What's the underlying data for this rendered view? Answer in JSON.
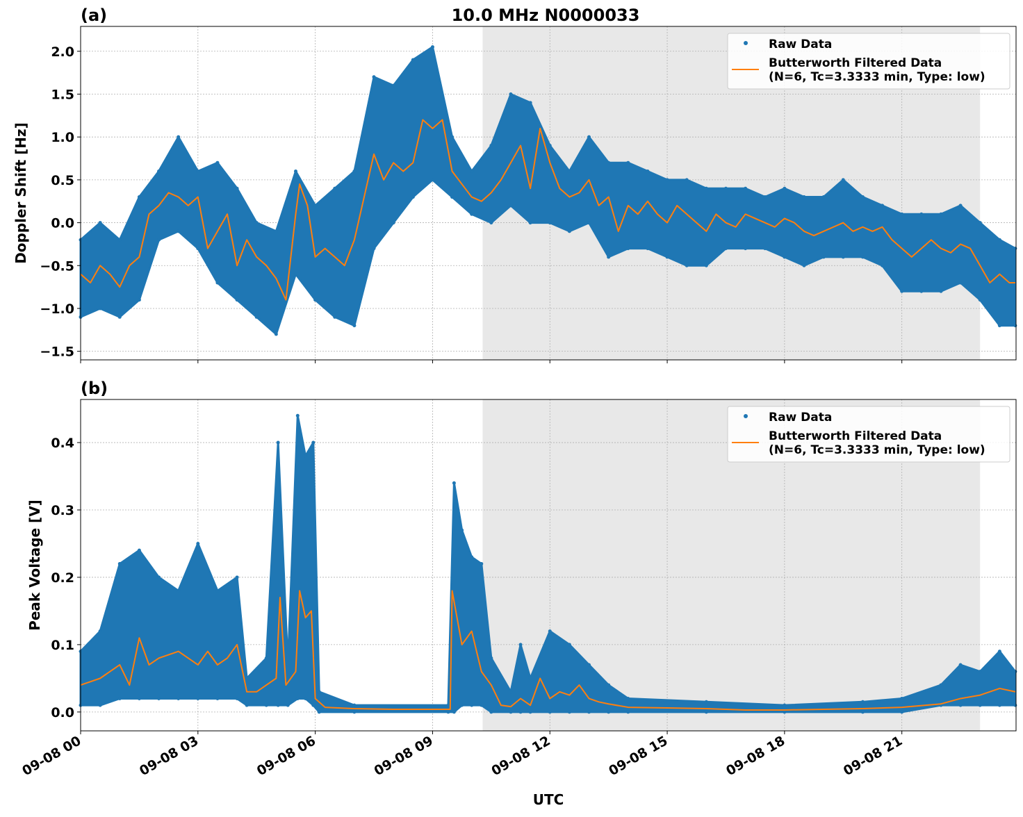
{
  "title": "10.0 MHz N0000033",
  "xlabel": "UTC",
  "xticks": [
    "09-08 00",
    "09-08 03",
    "09-08 06",
    "09-08 09",
    "09-08 12",
    "09-08 15",
    "09-08 18",
    "09-08 21"
  ],
  "xtick_hours": [
    0,
    3,
    6,
    9,
    12,
    15,
    18,
    21
  ],
  "xlim_hours": [
    0,
    23.92
  ],
  "shaded_region_hours": [
    10.28,
    23.0
  ],
  "colors": {
    "raw": "#1f77b4",
    "filtered": "#ff7f0e",
    "shade": "#e8e8e8",
    "grid": "#b0b0b0"
  },
  "legend": {
    "raw": "Raw Data",
    "filtered_line1": "Butterworth Filtered Data",
    "filtered_line2": "(N=6, Tc=3.3333 min, Type: low)",
    "placement": "top-right"
  },
  "chart_data": [
    {
      "type": "scatter+line",
      "panel_label": "(a)",
      "ylabel": "Doppler Shift [Hz]",
      "ylim": [
        -1.6,
        2.29
      ],
      "yticks": [
        2.0,
        1.5,
        1.0,
        0.5,
        0.0,
        -0.5,
        -1.0,
        -1.5
      ],
      "ytick_labels": [
        "2.0",
        "1.5",
        "1.0",
        "0.5",
        "0.0",
        "−0.5",
        "−1.0",
        "−1.5"
      ],
      "grid": true,
      "raw_envelope_hour_low_high": [
        [
          0,
          -1.1,
          -0.2
        ],
        [
          0.5,
          -1.0,
          0.0
        ],
        [
          1,
          -1.1,
          -0.2
        ],
        [
          1.5,
          -0.9,
          0.3
        ],
        [
          2,
          -0.2,
          0.6
        ],
        [
          2.5,
          -0.1,
          1.0
        ],
        [
          3,
          -0.3,
          0.6
        ],
        [
          3.5,
          -0.7,
          0.7
        ],
        [
          4,
          -0.9,
          0.4
        ],
        [
          4.5,
          -1.1,
          0.0
        ],
        [
          5,
          -1.3,
          -0.1
        ],
        [
          5.5,
          -0.6,
          0.6
        ],
        [
          6,
          -0.9,
          0.2
        ],
        [
          6.5,
          -1.1,
          0.4
        ],
        [
          7,
          -1.2,
          0.6
        ],
        [
          7.5,
          -0.3,
          1.7
        ],
        [
          8,
          0.0,
          1.6
        ],
        [
          8.5,
          0.3,
          1.9
        ],
        [
          9,
          0.5,
          2.05
        ],
        [
          9.5,
          0.3,
          1.0
        ],
        [
          10,
          0.1,
          0.6
        ],
        [
          10.5,
          0.0,
          0.9
        ],
        [
          11,
          0.2,
          1.5
        ],
        [
          11.5,
          0.0,
          1.4
        ],
        [
          12,
          0.0,
          0.9
        ],
        [
          12.5,
          -0.1,
          0.6
        ],
        [
          13,
          0.0,
          1.0
        ],
        [
          13.5,
          -0.4,
          0.7
        ],
        [
          14,
          -0.3,
          0.7
        ],
        [
          14.5,
          -0.3,
          0.6
        ],
        [
          15,
          -0.4,
          0.5
        ],
        [
          15.5,
          -0.5,
          0.5
        ],
        [
          16,
          -0.5,
          0.4
        ],
        [
          16.5,
          -0.3,
          0.4
        ],
        [
          17,
          -0.3,
          0.4
        ],
        [
          17.5,
          -0.3,
          0.3
        ],
        [
          18,
          -0.4,
          0.4
        ],
        [
          18.5,
          -0.5,
          0.3
        ],
        [
          19,
          -0.4,
          0.3
        ],
        [
          19.5,
          -0.4,
          0.5
        ],
        [
          20,
          -0.4,
          0.3
        ],
        [
          20.5,
          -0.5,
          0.2
        ],
        [
          21,
          -0.8,
          0.1
        ],
        [
          21.5,
          -0.8,
          0.1
        ],
        [
          22,
          -0.8,
          0.1
        ],
        [
          22.5,
          -0.7,
          0.2
        ],
        [
          23,
          -0.9,
          0.0
        ],
        [
          23.5,
          -1.2,
          -0.2
        ],
        [
          23.9,
          -1.2,
          -0.3
        ]
      ],
      "filtered_hour_value": [
        [
          0,
          -0.6
        ],
        [
          0.25,
          -0.7
        ],
        [
          0.5,
          -0.5
        ],
        [
          0.75,
          -0.6
        ],
        [
          1.0,
          -0.75
        ],
        [
          1.25,
          -0.5
        ],
        [
          1.5,
          -0.4
        ],
        [
          1.75,
          0.1
        ],
        [
          2.0,
          0.2
        ],
        [
          2.25,
          0.35
        ],
        [
          2.5,
          0.3
        ],
        [
          2.75,
          0.2
        ],
        [
          3.0,
          0.3
        ],
        [
          3.25,
          -0.3
        ],
        [
          3.5,
          -0.1
        ],
        [
          3.75,
          0.1
        ],
        [
          4.0,
          -0.5
        ],
        [
          4.25,
          -0.2
        ],
        [
          4.5,
          -0.4
        ],
        [
          4.75,
          -0.5
        ],
        [
          5.0,
          -0.65
        ],
        [
          5.25,
          -0.9
        ],
        [
          5.5,
          0.1
        ],
        [
          5.6,
          0.45
        ],
        [
          5.8,
          0.2
        ],
        [
          6.0,
          -0.4
        ],
        [
          6.25,
          -0.3
        ],
        [
          6.5,
          -0.4
        ],
        [
          6.75,
          -0.5
        ],
        [
          7.0,
          -0.2
        ],
        [
          7.25,
          0.3
        ],
        [
          7.5,
          0.8
        ],
        [
          7.75,
          0.5
        ],
        [
          8.0,
          0.7
        ],
        [
          8.25,
          0.6
        ],
        [
          8.5,
          0.7
        ],
        [
          8.75,
          1.2
        ],
        [
          9.0,
          1.1
        ],
        [
          9.25,
          1.2
        ],
        [
          9.5,
          0.6
        ],
        [
          9.75,
          0.45
        ],
        [
          10.0,
          0.3
        ],
        [
          10.25,
          0.25
        ],
        [
          10.5,
          0.35
        ],
        [
          10.75,
          0.5
        ],
        [
          11.0,
          0.7
        ],
        [
          11.25,
          0.9
        ],
        [
          11.5,
          0.4
        ],
        [
          11.75,
          1.1
        ],
        [
          12.0,
          0.7
        ],
        [
          12.25,
          0.4
        ],
        [
          12.5,
          0.3
        ],
        [
          12.75,
          0.35
        ],
        [
          13.0,
          0.5
        ],
        [
          13.25,
          0.2
        ],
        [
          13.5,
          0.3
        ],
        [
          13.75,
          -0.1
        ],
        [
          14.0,
          0.2
        ],
        [
          14.25,
          0.1
        ],
        [
          14.5,
          0.25
        ],
        [
          14.75,
          0.1
        ],
        [
          15.0,
          0.0
        ],
        [
          15.25,
          0.2
        ],
        [
          15.5,
          0.1
        ],
        [
          15.75,
          0.0
        ],
        [
          16.0,
          -0.1
        ],
        [
          16.25,
          0.1
        ],
        [
          16.5,
          0.0
        ],
        [
          16.75,
          -0.05
        ],
        [
          17.0,
          0.1
        ],
        [
          17.25,
          0.05
        ],
        [
          17.5,
          0.0
        ],
        [
          17.75,
          -0.05
        ],
        [
          18.0,
          0.05
        ],
        [
          18.25,
          0.0
        ],
        [
          18.5,
          -0.1
        ],
        [
          18.75,
          -0.15
        ],
        [
          19.0,
          -0.1
        ],
        [
          19.25,
          -0.05
        ],
        [
          19.5,
          0.0
        ],
        [
          19.75,
          -0.1
        ],
        [
          20.0,
          -0.05
        ],
        [
          20.25,
          -0.1
        ],
        [
          20.5,
          -0.05
        ],
        [
          20.75,
          -0.2
        ],
        [
          21.0,
          -0.3
        ],
        [
          21.25,
          -0.4
        ],
        [
          21.5,
          -0.3
        ],
        [
          21.75,
          -0.2
        ],
        [
          22.0,
          -0.3
        ],
        [
          22.25,
          -0.35
        ],
        [
          22.5,
          -0.25
        ],
        [
          22.75,
          -0.3
        ],
        [
          23.0,
          -0.5
        ],
        [
          23.25,
          -0.7
        ],
        [
          23.5,
          -0.6
        ],
        [
          23.75,
          -0.7
        ],
        [
          23.9,
          -0.7
        ]
      ]
    },
    {
      "type": "scatter+line",
      "panel_label": "(b)",
      "ylabel": "Peak Voltage [V]",
      "ylim": [
        -0.028,
        0.464
      ],
      "yticks": [
        0.4,
        0.3,
        0.2,
        0.1,
        0.0
      ],
      "ytick_labels": [
        "0.4",
        "0.3",
        "0.2",
        "0.1",
        "0.0"
      ],
      "grid": true,
      "raw_envelope_hour_low_high": [
        [
          0,
          0.01,
          0.09
        ],
        [
          0.5,
          0.01,
          0.12
        ],
        [
          1,
          0.02,
          0.22
        ],
        [
          1.5,
          0.02,
          0.24
        ],
        [
          2,
          0.02,
          0.2
        ],
        [
          2.5,
          0.02,
          0.18
        ],
        [
          3,
          0.02,
          0.25
        ],
        [
          3.5,
          0.02,
          0.18
        ],
        [
          4,
          0.02,
          0.2
        ],
        [
          4.25,
          0.01,
          0.05
        ],
        [
          4.75,
          0.01,
          0.08
        ],
        [
          5.05,
          0.01,
          0.4
        ],
        [
          5.3,
          0.01,
          0.07
        ],
        [
          5.55,
          0.02,
          0.44
        ],
        [
          5.75,
          0.02,
          0.38
        ],
        [
          5.95,
          0.01,
          0.4
        ],
        [
          6.1,
          0.0,
          0.03
        ],
        [
          7,
          0.0,
          0.01
        ],
        [
          9.4,
          0.0,
          0.01
        ],
        [
          9.55,
          0.0,
          0.34
        ],
        [
          9.75,
          0.01,
          0.27
        ],
        [
          10.0,
          0.01,
          0.23
        ],
        [
          10.25,
          0.01,
          0.22
        ],
        [
          10.5,
          0.0,
          0.08
        ],
        [
          11.0,
          0.0,
          0.03
        ],
        [
          11.25,
          0.0,
          0.1
        ],
        [
          11.5,
          0.0,
          0.05
        ],
        [
          12.0,
          0.0,
          0.12
        ],
        [
          12.5,
          0.0,
          0.1
        ],
        [
          13.0,
          0.0,
          0.07
        ],
        [
          13.5,
          0.0,
          0.04
        ],
        [
          14,
          0.0,
          0.02
        ],
        [
          16,
          0.0,
          0.015
        ],
        [
          18,
          0.0,
          0.01
        ],
        [
          20,
          0.0,
          0.015
        ],
        [
          21,
          0.0,
          0.02
        ],
        [
          22,
          0.01,
          0.04
        ],
        [
          22.5,
          0.01,
          0.07
        ],
        [
          23.0,
          0.01,
          0.06
        ],
        [
          23.5,
          0.01,
          0.09
        ],
        [
          23.9,
          0.01,
          0.06
        ]
      ],
      "filtered_hour_value": [
        [
          0,
          0.04
        ],
        [
          0.5,
          0.05
        ],
        [
          1,
          0.07
        ],
        [
          1.25,
          0.04
        ],
        [
          1.5,
          0.11
        ],
        [
          1.75,
          0.07
        ],
        [
          2,
          0.08
        ],
        [
          2.5,
          0.09
        ],
        [
          3,
          0.07
        ],
        [
          3.25,
          0.09
        ],
        [
          3.5,
          0.07
        ],
        [
          3.75,
          0.08
        ],
        [
          4,
          0.1
        ],
        [
          4.25,
          0.03
        ],
        [
          4.5,
          0.03
        ],
        [
          4.75,
          0.04
        ],
        [
          5,
          0.05
        ],
        [
          5.1,
          0.17
        ],
        [
          5.25,
          0.04
        ],
        [
          5.5,
          0.06
        ],
        [
          5.6,
          0.18
        ],
        [
          5.75,
          0.14
        ],
        [
          5.9,
          0.15
        ],
        [
          6.0,
          0.02
        ],
        [
          6.25,
          0.007
        ],
        [
          7,
          0.005
        ],
        [
          8,
          0.004
        ],
        [
          9,
          0.004
        ],
        [
          9.45,
          0.004
        ],
        [
          9.5,
          0.18
        ],
        [
          9.75,
          0.1
        ],
        [
          10,
          0.12
        ],
        [
          10.25,
          0.06
        ],
        [
          10.5,
          0.04
        ],
        [
          10.75,
          0.01
        ],
        [
          11,
          0.008
        ],
        [
          11.25,
          0.02
        ],
        [
          11.5,
          0.01
        ],
        [
          11.75,
          0.05
        ],
        [
          12,
          0.02
        ],
        [
          12.25,
          0.03
        ],
        [
          12.5,
          0.025
        ],
        [
          12.75,
          0.04
        ],
        [
          13,
          0.02
        ],
        [
          13.25,
          0.015
        ],
        [
          13.5,
          0.012
        ],
        [
          14,
          0.007
        ],
        [
          15,
          0.006
        ],
        [
          16,
          0.005
        ],
        [
          17,
          0.003
        ],
        [
          18,
          0.003
        ],
        [
          19,
          0.004
        ],
        [
          20,
          0.005
        ],
        [
          21,
          0.007
        ],
        [
          22,
          0.012
        ],
        [
          22.5,
          0.02
        ],
        [
          23,
          0.025
        ],
        [
          23.5,
          0.035
        ],
        [
          23.9,
          0.03
        ]
      ]
    }
  ]
}
